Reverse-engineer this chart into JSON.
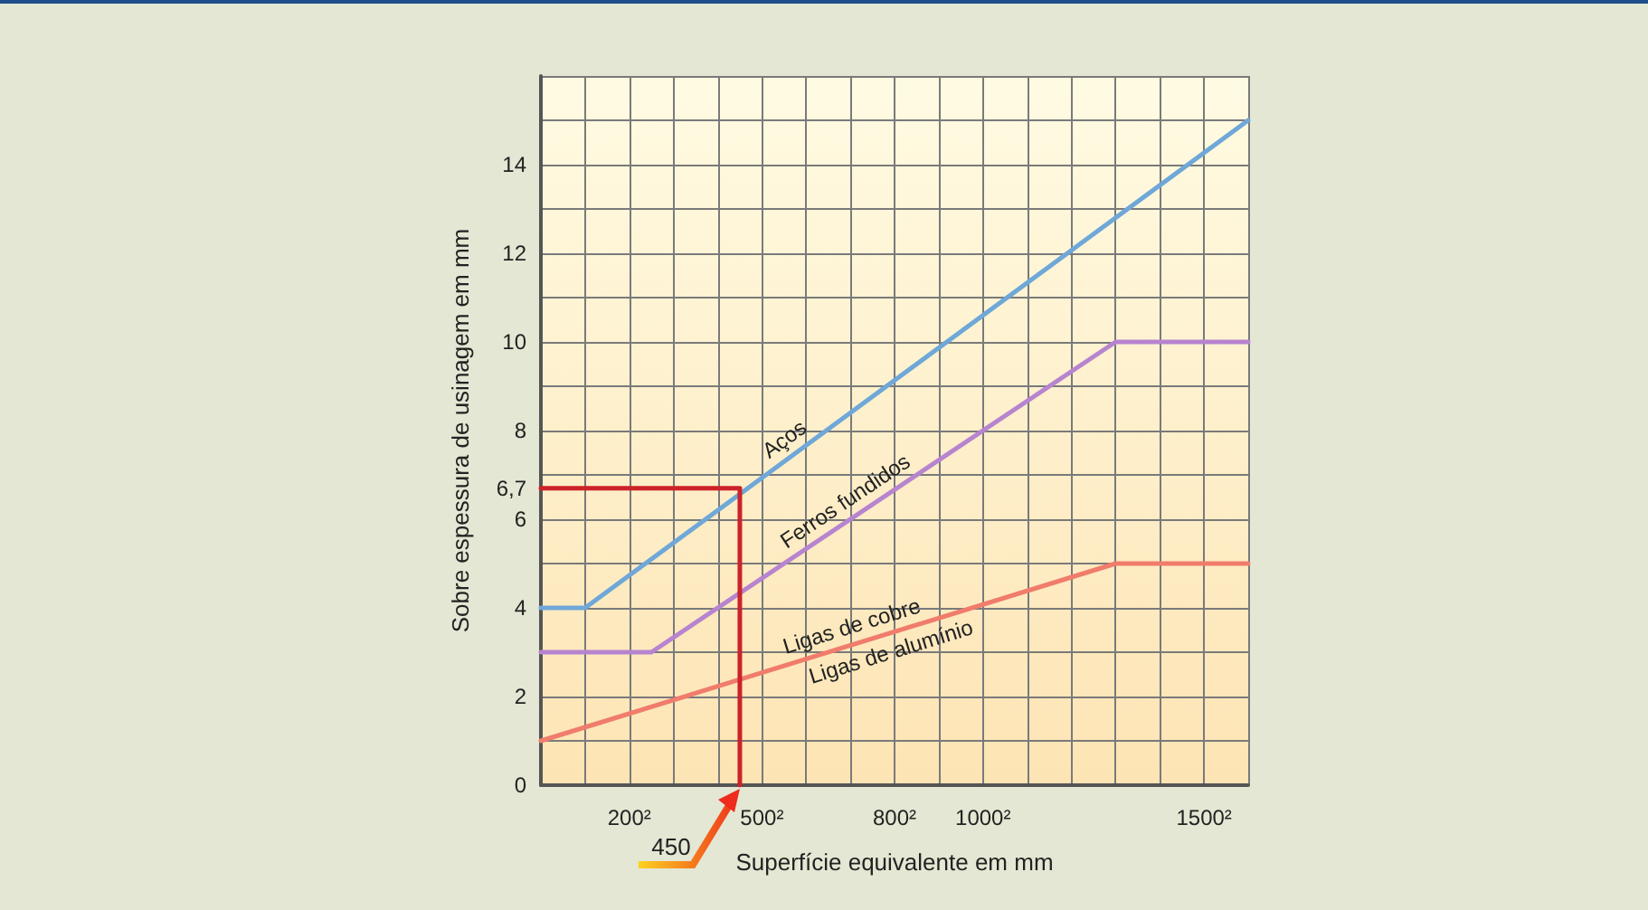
{
  "chart_data": {
    "type": "line",
    "xlabel": "Superfície equivalente em mm",
    "ylabel": "Sobre espessura de usinagem em mm",
    "xlim": [
      0,
      1600
    ],
    "ylim": [
      0,
      16
    ],
    "xticks": [
      {
        "value": 0,
        "label": null
      },
      {
        "value": 100,
        "label": null
      },
      {
        "value": 200,
        "label": "200²"
      },
      {
        "value": 300,
        "label": null
      },
      {
        "value": 400,
        "label": null
      },
      {
        "value": 500,
        "label": "500²"
      },
      {
        "value": 600,
        "label": null
      },
      {
        "value": 700,
        "label": null
      },
      {
        "value": 800,
        "label": "800²"
      },
      {
        "value": 900,
        "label": null
      },
      {
        "value": 1000,
        "label": "1000²"
      },
      {
        "value": 1100,
        "label": null
      },
      {
        "value": 1200,
        "label": null
      },
      {
        "value": 1300,
        "label": null
      },
      {
        "value": 1400,
        "label": null
      },
      {
        "value": 1500,
        "label": "1500²"
      },
      {
        "value": 1600,
        "label": null
      }
    ],
    "yticks": [
      0,
      {
        "value": 1,
        "label": null
      },
      2,
      {
        "value": 3,
        "label": null
      },
      4,
      {
        "value": 5,
        "label": null
      },
      6,
      {
        "value": 6.7,
        "label": "6,7"
      },
      {
        "value": 7,
        "label": null
      },
      8,
      {
        "value": 9,
        "label": null
      },
      10,
      {
        "value": 11,
        "label": null
      },
      12,
      {
        "value": 13,
        "label": null
      },
      14,
      {
        "value": 15,
        "label": null
      },
      {
        "value": 16,
        "label": null
      }
    ],
    "series": [
      {
        "color": "#6fa8d8",
        "x": [
          0,
          100,
          1600
        ],
        "values": [
          4,
          4,
          15
        ]
      },
      {
        "color": "#b784cf",
        "x": [
          0,
          250,
          1300,
          1600
        ],
        "values": [
          3,
          3,
          10,
          10
        ]
      },
      {
        "color": "#f07c6c",
        "x": [
          0,
          1300,
          1600
        ],
        "values": [
          1,
          5,
          5
        ]
      },
      {
        "color": "#cc2229",
        "x": [
          0,
          450,
          450
        ],
        "values": [
          6.7,
          6.7,
          0
        ]
      }
    ],
    "annotations": [
      {
        "text": "Aços",
        "x": 575,
        "y": 7.48
      },
      {
        "text": "Ferros fundidos",
        "x": 711,
        "y": 6.07
      },
      {
        "text": "Ligas de cobre",
        "x": 715,
        "y": 3.2
      },
      {
        "text": "Ligas de alumínio",
        "x": 780,
        "y": 3.4
      },
      {
        "text": "450",
        "x": 450,
        "y": 0
      }
    ],
    "grid": true,
    "marker": "none",
    "line_style": "solid"
  }
}
